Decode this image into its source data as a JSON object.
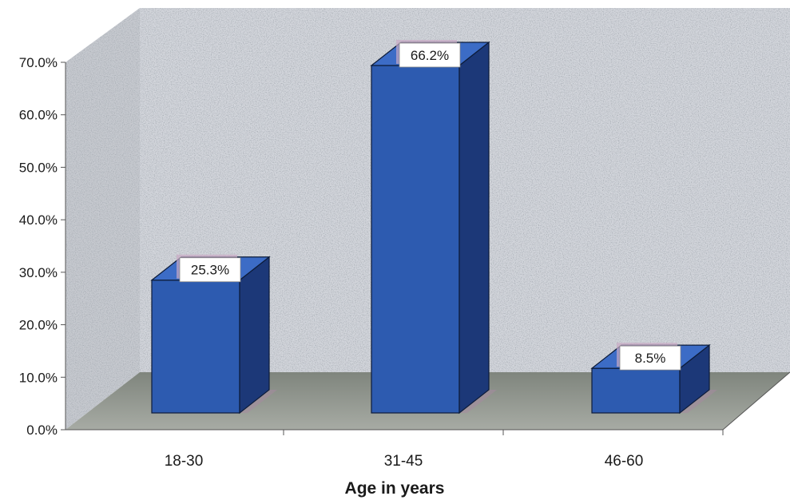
{
  "chart_data": {
    "type": "bar",
    "categories": [
      "18-30",
      "31-45",
      "46-60"
    ],
    "values": [
      25.3,
      66.2,
      8.5
    ],
    "data_labels": [
      "25.3%",
      "66.2%",
      "8.5%"
    ],
    "y_ticks": [
      "0.0%",
      "10.0%",
      "20.0%",
      "30.0%",
      "40.0%",
      "50.0%",
      "60.0%",
      "70.0%"
    ],
    "xlabel": "Age in years",
    "ylabel": "",
    "ylim": [
      0,
      70
    ],
    "style": "3d",
    "grid": false,
    "legend": "none",
    "bar_color": "#2d5bb0",
    "wall_color": "#c9ccd2",
    "floor_color": "#8f948c"
  }
}
